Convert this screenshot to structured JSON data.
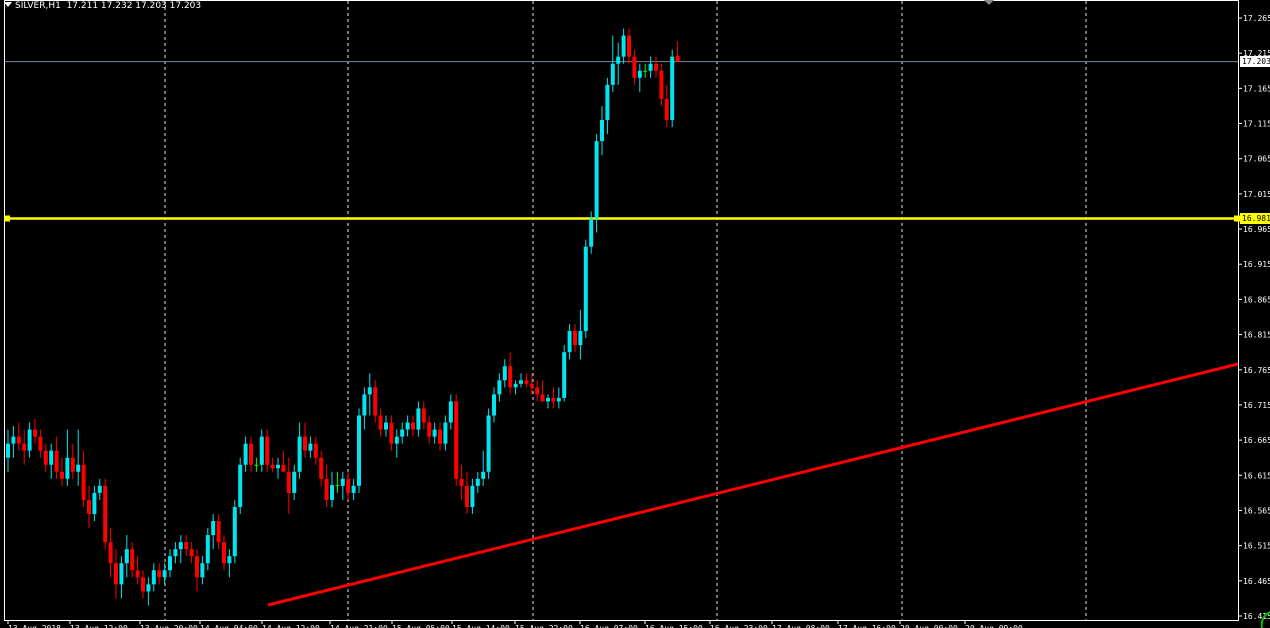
{
  "header": {
    "symbol_timeframe": "SILVER,H1",
    "ohlc": "17.211 17.232 17.203 17.203"
  },
  "colors": {
    "background": "#000000",
    "bull": "#00E5EE",
    "bear": "#FF0000",
    "doji": "#00FF00",
    "grid": "#FFFFFF",
    "axis_text": "#FFFFFF",
    "horizontal_line": "#FFFF00",
    "trendline": "#FF0000",
    "bid_line": "#778899"
  },
  "chart_data": {
    "type": "candlestick",
    "ylim": [
      16.415,
      17.29
    ],
    "y_ticks": [
      "17.265",
      "17.215",
      "17.165",
      "17.115",
      "17.065",
      "17.015",
      "16.965",
      "16.915",
      "16.865",
      "16.815",
      "16.765",
      "16.715",
      "16.665",
      "16.615",
      "16.565",
      "16.515",
      "16.465",
      "16.415"
    ],
    "x_ticks": [
      "13 Aug 2018",
      "13 Aug 12:00",
      "13 Aug 20:00",
      "14 Aug 04:00",
      "14 Aug 12:00",
      "14 Aug 21:00",
      "15 Aug 05:00",
      "15 Aug 14:00",
      "15 Aug 22:00",
      "16 Aug 07:00",
      "16 Aug 15:00",
      "16 Aug 23:00",
      "17 Aug 08:00",
      "17 Aug 16:00",
      "20 Aug 00:00",
      "20 Aug 09:00"
    ],
    "current_price": {
      "value": 17.203,
      "label": "17.203"
    },
    "horizontal_level": {
      "value": 16.98,
      "label": "16.981"
    },
    "trendline": {
      "from": {
        "bar": 37,
        "price": 16.432
      },
      "to": {
        "bar": 171,
        "price": 16.778
      }
    },
    "candles": [
      [
        16.64,
        16.68,
        16.62,
        16.66
      ],
      [
        16.66,
        16.685,
        16.64,
        16.67
      ],
      [
        16.67,
        16.69,
        16.65,
        16.66
      ],
      [
        16.66,
        16.68,
        16.63,
        16.65
      ],
      [
        16.65,
        16.69,
        16.64,
        16.68
      ],
      [
        16.68,
        16.695,
        16.66,
        16.67
      ],
      [
        16.67,
        16.68,
        16.64,
        16.65
      ],
      [
        16.65,
        16.66,
        16.62,
        16.63
      ],
      [
        16.63,
        16.66,
        16.61,
        16.65
      ],
      [
        16.65,
        16.67,
        16.61,
        16.62
      ],
      [
        16.62,
        16.64,
        16.6,
        16.61
      ],
      [
        16.61,
        16.68,
        16.6,
        16.64
      ],
      [
        16.64,
        16.66,
        16.61,
        16.62
      ],
      [
        16.62,
        16.68,
        16.6,
        16.63
      ],
      [
        16.63,
        16.65,
        16.57,
        16.58
      ],
      [
        16.58,
        16.6,
        16.54,
        16.56
      ],
      [
        16.56,
        16.6,
        16.55,
        16.59
      ],
      [
        16.59,
        16.61,
        16.58,
        16.6
      ],
      [
        16.6,
        16.61,
        16.51,
        16.52
      ],
      [
        16.52,
        16.54,
        16.47,
        16.49
      ],
      [
        16.49,
        16.51,
        16.44,
        16.46
      ],
      [
        16.46,
        16.5,
        16.44,
        16.49
      ],
      [
        16.49,
        16.53,
        16.47,
        16.51
      ],
      [
        16.51,
        16.52,
        16.47,
        16.48
      ],
      [
        16.48,
        16.5,
        16.46,
        16.47
      ],
      [
        16.47,
        16.48,
        16.44,
        16.45
      ],
      [
        16.45,
        16.47,
        16.43,
        16.46
      ],
      [
        16.46,
        16.49,
        16.45,
        16.48
      ],
      [
        16.48,
        16.49,
        16.46,
        16.47
      ],
      [
        16.47,
        16.49,
        16.46,
        16.48
      ],
      [
        16.48,
        16.51,
        16.47,
        16.5
      ],
      [
        16.5,
        16.52,
        16.49,
        16.51
      ],
      [
        16.51,
        16.53,
        16.49,
        16.52
      ],
      [
        16.52,
        16.53,
        16.5,
        16.51
      ],
      [
        16.51,
        16.52,
        16.49,
        16.5
      ],
      [
        16.5,
        16.51,
        16.45,
        16.47
      ],
      [
        16.47,
        16.5,
        16.46,
        16.49
      ],
      [
        16.49,
        16.54,
        16.48,
        16.53
      ],
      [
        16.53,
        16.56,
        16.51,
        16.55
      ],
      [
        16.55,
        16.56,
        16.51,
        16.52
      ],
      [
        16.52,
        16.53,
        16.48,
        16.49
      ],
      [
        16.49,
        16.51,
        16.47,
        16.5
      ],
      [
        16.5,
        16.58,
        16.49,
        16.57
      ],
      [
        16.57,
        16.64,
        16.56,
        16.63
      ],
      [
        16.63,
        16.67,
        16.62,
        16.66
      ],
      [
        16.66,
        16.67,
        16.62,
        16.63
      ],
      [
        16.63,
        16.64,
        16.62,
        16.63
      ],
      [
        16.63,
        16.68,
        16.62,
        16.67
      ],
      [
        16.67,
        16.68,
        16.62,
        16.63
      ],
      [
        16.63,
        16.64,
        16.62,
        16.625
      ],
      [
        16.625,
        16.64,
        16.61,
        16.63
      ],
      [
        16.63,
        16.65,
        16.62,
        16.62
      ],
      [
        16.62,
        16.64,
        16.56,
        16.59
      ],
      [
        16.59,
        16.63,
        16.58,
        16.62
      ],
      [
        16.62,
        16.69,
        16.61,
        16.67
      ],
      [
        16.67,
        16.69,
        16.64,
        16.65
      ],
      [
        16.65,
        16.67,
        16.64,
        16.66
      ],
      [
        16.66,
        16.67,
        16.63,
        16.64
      ],
      [
        16.64,
        16.65,
        16.6,
        16.61
      ],
      [
        16.61,
        16.63,
        16.57,
        16.58
      ],
      [
        16.58,
        16.62,
        16.57,
        16.601
      ],
      [
        16.601,
        16.62,
        16.59,
        16.6
      ],
      [
        16.6,
        16.62,
        16.58,
        16.61
      ],
      [
        16.61,
        16.62,
        16.58,
        16.59
      ],
      [
        16.59,
        16.61,
        16.58,
        16.6
      ],
      [
        16.6,
        16.71,
        16.59,
        16.7
      ],
      [
        16.7,
        16.74,
        16.68,
        16.73
      ],
      [
        16.73,
        16.76,
        16.7,
        16.74
      ],
      [
        16.74,
        16.75,
        16.69,
        16.7
      ],
      [
        16.7,
        16.71,
        16.67,
        16.68
      ],
      [
        16.68,
        16.7,
        16.67,
        16.69
      ],
      [
        16.69,
        16.7,
        16.65,
        16.66
      ],
      [
        16.66,
        16.68,
        16.64,
        16.67
      ],
      [
        16.67,
        16.69,
        16.66,
        16.68
      ],
      [
        16.68,
        16.7,
        16.67,
        16.69
      ],
      [
        16.69,
        16.7,
        16.67,
        16.68
      ],
      [
        16.68,
        16.72,
        16.67,
        16.71
      ],
      [
        16.71,
        16.72,
        16.68,
        16.69
      ],
      [
        16.69,
        16.7,
        16.66,
        16.67
      ],
      [
        16.67,
        16.69,
        16.66,
        16.68
      ],
      [
        16.68,
        16.69,
        16.65,
        16.66
      ],
      [
        16.66,
        16.7,
        16.65,
        16.69
      ],
      [
        16.69,
        16.73,
        16.68,
        16.72
      ],
      [
        16.72,
        16.73,
        16.6,
        16.61
      ],
      [
        16.61,
        16.63,
        16.58,
        16.6
      ],
      [
        16.6,
        16.62,
        16.56,
        16.57
      ],
      [
        16.57,
        16.61,
        16.56,
        16.6
      ],
      [
        16.6,
        16.62,
        16.59,
        16.61
      ],
      [
        16.61,
        16.65,
        16.6,
        16.62
      ],
      [
        16.62,
        16.71,
        16.61,
        16.7
      ],
      [
        16.7,
        16.74,
        16.69,
        16.73
      ],
      [
        16.73,
        16.76,
        16.72,
        16.75
      ],
      [
        16.75,
        16.78,
        16.74,
        16.77
      ],
      [
        16.77,
        16.79,
        16.73,
        16.74
      ],
      [
        16.74,
        16.75,
        16.73,
        16.745
      ],
      [
        16.745,
        16.76,
        16.74,
        16.75
      ],
      [
        16.75,
        16.76,
        16.74,
        16.745
      ],
      [
        16.745,
        16.76,
        16.73,
        16.74
      ],
      [
        16.74,
        16.75,
        16.72,
        16.73
      ],
      [
        16.73,
        16.75,
        16.72,
        16.72
      ],
      [
        16.72,
        16.73,
        16.71,
        16.725
      ],
      [
        16.725,
        16.74,
        16.71,
        16.72
      ],
      [
        16.72,
        16.74,
        16.71,
        16.725
      ],
      [
        16.725,
        16.8,
        16.72,
        16.79
      ],
      [
        16.79,
        16.83,
        16.78,
        16.82
      ],
      [
        16.82,
        16.83,
        16.79,
        16.8
      ],
      [
        16.8,
        16.85,
        16.78,
        16.82
      ],
      [
        16.82,
        16.95,
        16.81,
        16.94
      ],
      [
        16.94,
        16.99,
        16.93,
        16.98
      ],
      [
        16.98,
        17.1,
        16.96,
        17.09
      ],
      [
        17.09,
        17.14,
        17.07,
        17.12
      ],
      [
        17.12,
        17.18,
        17.1,
        17.17
      ],
      [
        17.17,
        17.24,
        17.16,
        17.2
      ],
      [
        17.2,
        17.23,
        17.17,
        17.21
      ],
      [
        17.21,
        17.25,
        17.2,
        17.24
      ],
      [
        17.24,
        17.25,
        17.2,
        17.21
      ],
      [
        17.21,
        17.22,
        17.17,
        17.18
      ],
      [
        17.18,
        17.2,
        17.16,
        17.19
      ],
      [
        17.19,
        17.2,
        17.18,
        17.19
      ],
      [
        17.19,
        17.21,
        17.18,
        17.2
      ],
      [
        17.2,
        17.21,
        17.18,
        17.19
      ],
      [
        17.19,
        17.2,
        17.14,
        17.15
      ],
      [
        17.15,
        17.17,
        17.11,
        17.12
      ],
      [
        17.12,
        17.22,
        17.11,
        17.21
      ],
      [
        17.211,
        17.232,
        17.203,
        17.203
      ]
    ]
  }
}
